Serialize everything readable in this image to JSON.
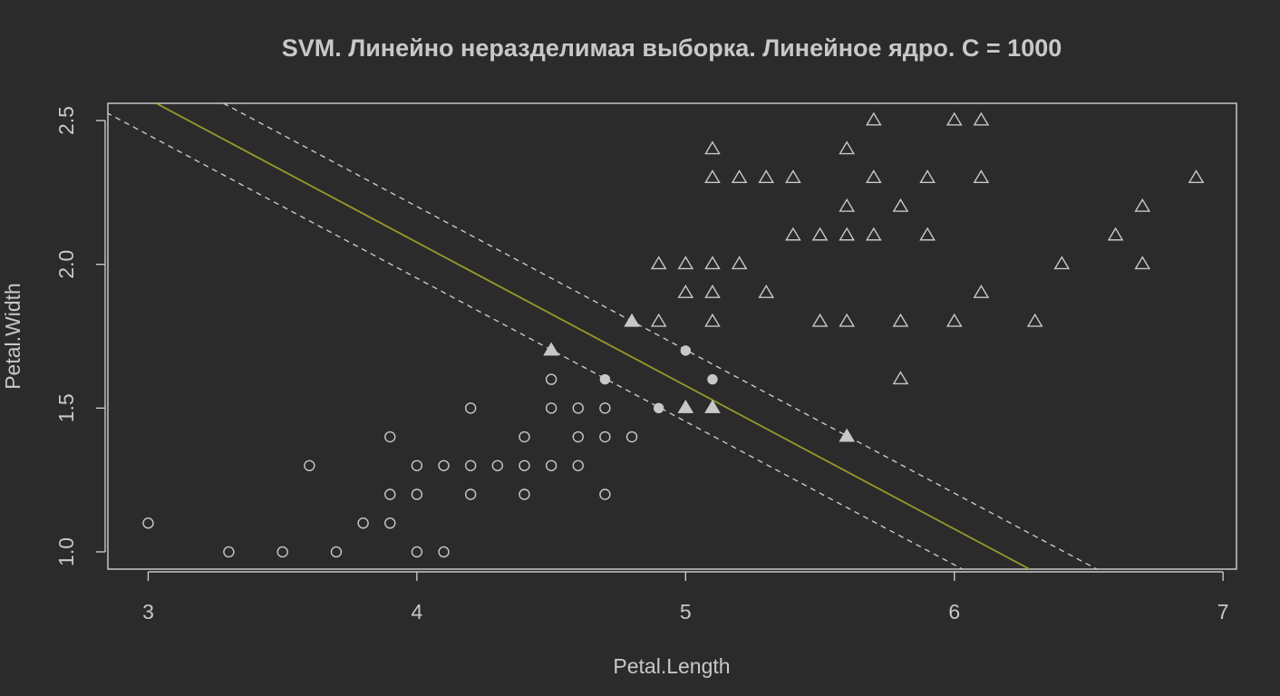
{
  "chart_data": {
    "type": "scatter",
    "title": "SVM. Линейно неразделимая выборка. Линейное ядро. C = 1000",
    "xlabel": "Petal.Length",
    "ylabel": "Petal.Width",
    "xlim": [
      2.85,
      7.05
    ],
    "ylim": [
      0.94,
      2.56
    ],
    "xticks": [
      "3",
      "4",
      "5",
      "6",
      "7"
    ],
    "yticks": [
      "1.0",
      "1.5",
      "2.0",
      "2.5"
    ],
    "colors": {
      "background": "#2b2b2b",
      "foreground": "#c8c8c8",
      "decision": "#9a9a2a"
    },
    "lines": [
      {
        "name": "margin-upper",
        "style": "dashed",
        "points": [
          [
            3.28,
            2.56
          ],
          [
            6.53,
            0.94
          ]
        ]
      },
      {
        "name": "decision-boundary",
        "style": "solid",
        "points": [
          [
            3.03,
            2.56
          ],
          [
            6.28,
            0.94
          ]
        ]
      },
      {
        "name": "margin-lower",
        "style": "dashed",
        "points": [
          [
            2.78,
            2.56
          ],
          [
            6.03,
            0.94
          ]
        ]
      }
    ],
    "series": [
      {
        "marker": "circle",
        "points": [
          [
            3.0,
            1.1
          ],
          [
            3.3,
            1.0
          ],
          [
            3.5,
            1.0
          ],
          [
            3.6,
            1.3
          ],
          [
            3.7,
            1.0
          ],
          [
            3.8,
            1.1
          ],
          [
            3.9,
            1.4
          ],
          [
            3.9,
            1.2
          ],
          [
            3.9,
            1.1
          ],
          [
            4.0,
            1.3
          ],
          [
            4.0,
            1.2
          ],
          [
            4.0,
            1.0
          ],
          [
            4.1,
            1.3
          ],
          [
            4.1,
            1.0
          ],
          [
            4.2,
            1.5
          ],
          [
            4.2,
            1.3
          ],
          [
            4.2,
            1.2
          ],
          [
            4.3,
            1.3
          ],
          [
            4.4,
            1.4
          ],
          [
            4.4,
            1.3
          ],
          [
            4.4,
            1.2
          ],
          [
            4.5,
            1.6
          ],
          [
            4.5,
            1.5
          ],
          [
            4.5,
            1.3
          ],
          [
            4.6,
            1.5
          ],
          [
            4.6,
            1.4
          ],
          [
            4.6,
            1.3
          ],
          [
            4.7,
            1.5
          ],
          [
            4.7,
            1.4
          ],
          [
            4.7,
            1.2
          ],
          [
            4.8,
            1.4
          ]
        ]
      },
      {
        "marker": "circle-filled",
        "points": [
          [
            4.7,
            1.6
          ],
          [
            4.9,
            1.5
          ],
          [
            5.0,
            1.7
          ],
          [
            5.1,
            1.6
          ]
        ]
      },
      {
        "marker": "triangle",
        "points": [
          [
            4.9,
            1.8
          ],
          [
            4.9,
            2.0
          ],
          [
            5.0,
            2.0
          ],
          [
            5.0,
            1.9
          ],
          [
            5.1,
            2.4
          ],
          [
            5.1,
            2.3
          ],
          [
            5.1,
            2.0
          ],
          [
            5.1,
            1.9
          ],
          [
            5.1,
            1.8
          ],
          [
            5.2,
            2.3
          ],
          [
            5.2,
            2.0
          ],
          [
            5.3,
            2.3
          ],
          [
            5.3,
            1.9
          ],
          [
            5.4,
            2.3
          ],
          [
            5.4,
            2.1
          ],
          [
            5.5,
            2.1
          ],
          [
            5.5,
            1.8
          ],
          [
            5.6,
            2.4
          ],
          [
            5.6,
            2.2
          ],
          [
            5.6,
            2.1
          ],
          [
            5.6,
            1.8
          ],
          [
            5.7,
            2.5
          ],
          [
            5.7,
            2.3
          ],
          [
            5.7,
            2.1
          ],
          [
            5.8,
            2.2
          ],
          [
            5.8,
            1.8
          ],
          [
            5.8,
            1.6
          ],
          [
            5.9,
            2.3
          ],
          [
            5.9,
            2.1
          ],
          [
            6.0,
            2.5
          ],
          [
            6.0,
            1.8
          ],
          [
            6.1,
            2.5
          ],
          [
            6.1,
            2.3
          ],
          [
            6.1,
            1.9
          ],
          [
            6.3,
            1.8
          ],
          [
            6.4,
            2.0
          ],
          [
            6.6,
            2.1
          ],
          [
            6.7,
            2.2
          ],
          [
            6.7,
            2.0
          ],
          [
            6.9,
            2.3
          ]
        ]
      },
      {
        "marker": "triangle-filled",
        "points": [
          [
            4.5,
            1.7
          ],
          [
            4.8,
            1.8
          ],
          [
            5.0,
            1.5
          ],
          [
            5.1,
            1.5
          ],
          [
            5.6,
            1.4
          ]
        ]
      }
    ]
  }
}
